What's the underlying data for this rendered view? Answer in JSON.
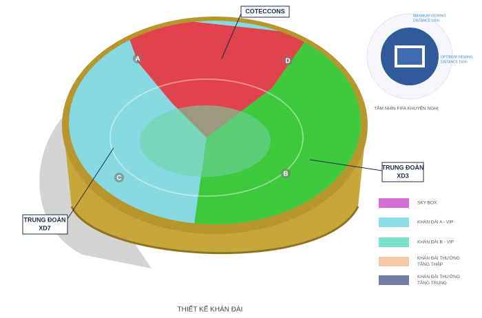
{
  "callouts": [
    {
      "lines": [
        "COTECCONS"
      ]
    },
    {
      "lines": [
        "TRUNG ĐOÀN",
        "XD3"
      ]
    },
    {
      "lines": [
        "TRUNG ĐOÀN",
        "XD7"
      ]
    }
  ],
  "section_labels": [
    "A",
    "B",
    "C",
    "D"
  ],
  "fifa": {
    "maximum": [
      "MAXIMUM VIEWING",
      "DISTANCE 190m"
    ],
    "optimum": [
      "OPTIMUM VIEWING",
      "DISTANCE 150m"
    ],
    "caption": "TẦM NHÌN FIFA KHUYẾN NGHỊ"
  },
  "legend": [
    {
      "lines": [
        "SKY BOX"
      ],
      "color": "#d46fd6"
    },
    {
      "lines": [
        "KHÁN ĐÀI A - VIP"
      ],
      "color": "#8fdde8"
    },
    {
      "lines": [
        "KHÁN ĐÀI B - VIP"
      ],
      "color": "#79e2c8"
    },
    {
      "lines": [
        "KHÁN ĐÀI THƯỜNG",
        "TẦNG THẤP"
      ],
      "color": "#f6c9a4"
    },
    {
      "lines": [
        "KHÁN ĐÀI THƯỜNG",
        "TẦNG TRUNG"
      ],
      "color": "#6f7ea3"
    }
  ],
  "footer": "THIẾT KẾ KHÁN ĐÀI"
}
